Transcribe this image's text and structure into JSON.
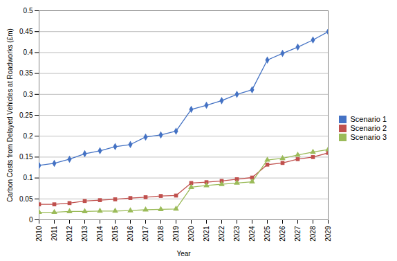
{
  "chart_data": {
    "type": "line",
    "x": [
      2010,
      2011,
      2012,
      2013,
      2014,
      2015,
      2016,
      2017,
      2018,
      2019,
      2020,
      2021,
      2022,
      2023,
      2024,
      2025,
      2026,
      2027,
      2028,
      2029
    ],
    "series": [
      {
        "name": "Scenario 1",
        "color": "#4472C4",
        "marker": "diamond",
        "values": [
          0.13,
          0.135,
          0.145,
          0.158,
          0.165,
          0.175,
          0.18,
          0.198,
          0.203,
          0.212,
          0.264,
          0.274,
          0.285,
          0.3,
          0.311,
          0.382,
          0.398,
          0.413,
          0.43,
          0.45
        ]
      },
      {
        "name": "Scenario 2",
        "color": "#C0504D",
        "marker": "square",
        "values": [
          0.037,
          0.037,
          0.04,
          0.045,
          0.047,
          0.049,
          0.052,
          0.054,
          0.057,
          0.058,
          0.088,
          0.09,
          0.093,
          0.097,
          0.101,
          0.132,
          0.136,
          0.145,
          0.15,
          0.16
        ]
      },
      {
        "name": "Scenario 3",
        "color": "#9BBB59",
        "marker": "triangle",
        "values": [
          0.018,
          0.018,
          0.02,
          0.02,
          0.021,
          0.021,
          0.022,
          0.024,
          0.025,
          0.026,
          0.078,
          0.082,
          0.085,
          0.088,
          0.091,
          0.143,
          0.147,
          0.155,
          0.162,
          0.168
        ]
      }
    ],
    "xlabel": "Year",
    "ylabel": "Carbon Costs from Delayed Vehicles at Roadworks (£m)",
    "xlim": [
      2010,
      2029
    ],
    "xticks": [
      2010,
      2011,
      2012,
      2013,
      2014,
      2015,
      2016,
      2017,
      2018,
      2019,
      2020,
      2021,
      2022,
      2023,
      2024,
      2025,
      2026,
      2027,
      2028,
      2029
    ],
    "ylim": [
      0,
      0.5
    ],
    "yticks": [
      0,
      0.05,
      0.1,
      0.15,
      0.2,
      0.25,
      0.3,
      0.35,
      0.4,
      0.45,
      0.5
    ],
    "grid": true,
    "legend": "right"
  }
}
